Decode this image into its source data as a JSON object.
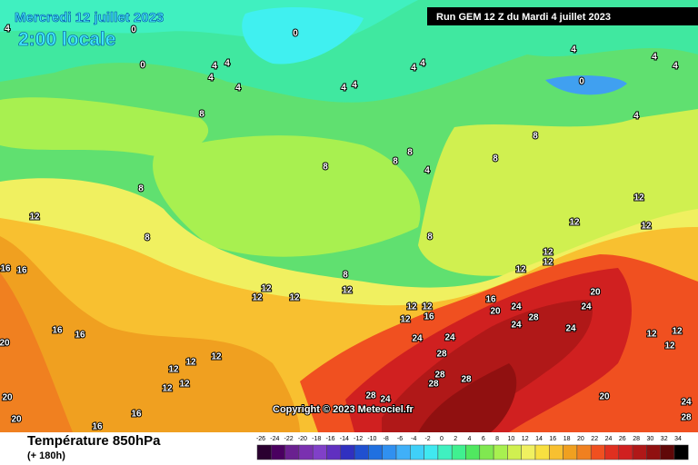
{
  "header": {
    "date": "Mercredi 12 juillet 2023",
    "time": "2:00 locale",
    "run": "Run GEM 12 Z du Mardi 4 juillet 2023"
  },
  "copyright": "Copyright © 2023 Meteociel.fr",
  "footer": {
    "title": "Température 850hPa",
    "lead": "(+ 180h)"
  },
  "scale": {
    "values": [
      -26,
      -24,
      -22,
      -20,
      -18,
      -16,
      -14,
      -12,
      -10,
      -8,
      -6,
      -4,
      -2,
      0,
      2,
      4,
      6,
      8,
      10,
      12,
      14,
      16,
      18,
      20,
      22,
      24,
      26,
      28,
      30,
      32,
      34
    ],
    "colors": [
      "#2a0030",
      "#4a0060",
      "#6a2090",
      "#7a30b0",
      "#8040c8",
      "#6030c0",
      "#3030c0",
      "#2050d0",
      "#2070e0",
      "#3090f0",
      "#40b0f8",
      "#40d0f8",
      "#40e8f0",
      "#40f0c0",
      "#40f090",
      "#50e860",
      "#80e850",
      "#a8f050",
      "#d0f050",
      "#f0f060",
      "#f8e040",
      "#f8c030",
      "#f0a020",
      "#f08020",
      "#f05020",
      "#e03020",
      "#d02020",
      "#b01818",
      "#901010",
      "#600808",
      "#000000"
    ]
  },
  "map_labels": [
    4,
    0,
    0,
    0,
    4,
    4,
    4,
    4,
    4,
    4,
    4,
    4,
    0,
    4,
    4,
    4,
    4,
    8,
    8,
    8,
    8,
    8,
    4,
    8,
    8,
    12,
    8,
    8,
    12,
    12,
    12,
    12,
    12,
    12,
    16,
    16,
    8,
    12,
    12,
    12,
    12,
    16,
    20,
    12,
    12,
    20,
    24,
    28,
    24,
    12,
    16,
    24,
    24,
    24,
    24,
    12,
    12,
    12,
    16,
    16,
    20,
    28,
    12,
    12,
    12,
    12,
    12,
    28,
    28,
    28,
    20,
    24,
    20,
    28,
    24,
    16,
    20,
    16,
    28
  ]
}
